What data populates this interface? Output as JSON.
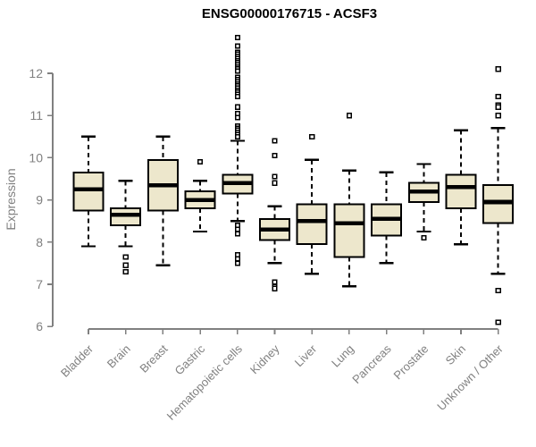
{
  "chart_data": {
    "type": "boxplot",
    "title": "ENSG00000176715 - ACSF3",
    "ylabel": "Expression",
    "xlabel": "",
    "ylim": [
      6,
      12
    ],
    "yticks": [
      6,
      7,
      8,
      9,
      10,
      11,
      12
    ],
    "grid": false,
    "legend": "none",
    "categories": [
      "Bladder",
      "Brain",
      "Breast",
      "Gastric",
      "Hematopoietic cells",
      "Kidney",
      "Liver",
      "Lung",
      "Pancreas",
      "Prostate",
      "Skin",
      "Unknown / Other"
    ],
    "series": [
      {
        "category": "Bladder",
        "whisker_low": 7.9,
        "q1": 8.75,
        "median": 9.25,
        "q3": 9.65,
        "whisker_high": 10.5,
        "outliers": []
      },
      {
        "category": "Brain",
        "whisker_low": 7.9,
        "q1": 8.4,
        "median": 8.65,
        "q3": 8.8,
        "whisker_high": 9.45,
        "outliers": [
          7.65,
          7.45,
          7.3
        ]
      },
      {
        "category": "Breast",
        "whisker_low": 7.45,
        "q1": 8.75,
        "median": 9.35,
        "q3": 9.95,
        "whisker_high": 10.5,
        "outliers": []
      },
      {
        "category": "Gastric",
        "whisker_low": 8.25,
        "q1": 8.8,
        "median": 9.0,
        "q3": 9.2,
        "whisker_high": 9.45,
        "outliers": [
          9.9
        ]
      },
      {
        "category": "Hematopoietic cells",
        "whisker_low": 8.5,
        "q1": 9.15,
        "median": 9.4,
        "q3": 9.6,
        "whisker_high": 10.4,
        "outliers": [
          12.85,
          12.65,
          12.5,
          12.45,
          12.4,
          12.35,
          12.3,
          12.25,
          12.2,
          12.15,
          12.1,
          12.05,
          11.9,
          11.85,
          11.8,
          11.75,
          11.7,
          11.65,
          11.6,
          11.55,
          11.5,
          11.45,
          11.2,
          11.05,
          10.95,
          10.75,
          10.7,
          10.65,
          10.6,
          10.55,
          10.5,
          8.4,
          8.3,
          8.2,
          7.7,
          7.6,
          7.5
        ]
      },
      {
        "category": "Kidney",
        "whisker_low": 7.5,
        "q1": 8.05,
        "median": 8.3,
        "q3": 8.55,
        "whisker_high": 8.85,
        "outliers": [
          10.4,
          10.05,
          9.55,
          9.4,
          7.05,
          6.95,
          6.9
        ]
      },
      {
        "category": "Liver",
        "whisker_low": 7.25,
        "q1": 7.95,
        "median": 8.5,
        "q3": 8.9,
        "whisker_high": 9.95,
        "outliers": [
          10.5
        ]
      },
      {
        "category": "Lung",
        "whisker_low": 6.95,
        "q1": 7.65,
        "median": 8.45,
        "q3": 8.9,
        "whisker_high": 9.7,
        "outliers": [
          11.0
        ]
      },
      {
        "category": "Pancreas",
        "whisker_low": 7.5,
        "q1": 8.15,
        "median": 8.55,
        "q3": 8.9,
        "whisker_high": 9.65,
        "outliers": []
      },
      {
        "category": "Prostate",
        "whisker_low": 8.25,
        "q1": 8.95,
        "median": 9.2,
        "q3": 9.4,
        "whisker_high": 9.85,
        "outliers": [
          8.1
        ]
      },
      {
        "category": "Skin",
        "whisker_low": 7.95,
        "q1": 8.8,
        "median": 9.3,
        "q3": 9.6,
        "whisker_high": 10.65,
        "outliers": []
      },
      {
        "category": "Unknown / Other",
        "whisker_low": 7.25,
        "q1": 8.45,
        "median": 8.95,
        "q3": 9.35,
        "whisker_high": 10.7,
        "outliers": [
          12.1,
          11.45,
          11.25,
          11.2,
          11.0,
          6.85,
          6.1
        ]
      }
    ],
    "colors": {
      "box_fill": "#EDE7CC",
      "box_border": "#000000",
      "median_line": "#000000",
      "whisker": "#000000",
      "outlier_stroke": "#000000",
      "outlier_fill": "#FFFFFF",
      "axis": "#808080",
      "tick_label": "#808080",
      "title": "#000000",
      "background": "#FFFFFF"
    }
  }
}
